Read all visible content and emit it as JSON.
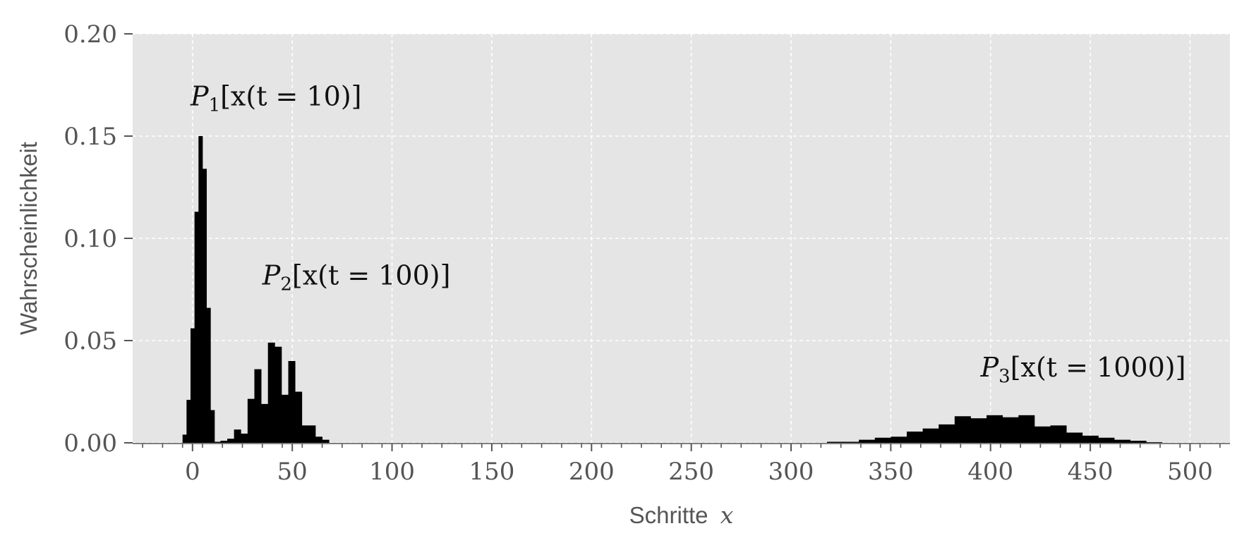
{
  "chart_data": {
    "type": "bar",
    "title": "",
    "xlabel": "Schritte",
    "xlabel_var": "x",
    "ylabel": "Wahrscheinlichkeit",
    "xlim": [
      -30,
      520
    ],
    "ylim": [
      0,
      0.2
    ],
    "xticks": [
      0,
      50,
      100,
      150,
      200,
      250,
      300,
      350,
      400,
      450,
      500
    ],
    "xtick_labels": [
      "0",
      "50",
      "100",
      "150",
      "200",
      "250",
      "300",
      "350",
      "400",
      "450",
      "500"
    ],
    "yticks": [
      0,
      0.05,
      0.1,
      0.15,
      0.2
    ],
    "ytick_labels": [
      "0.00",
      "0.05",
      "0.10",
      "0.15",
      "0.20"
    ],
    "grid": true,
    "grid_style": "dashed",
    "background": "#e5e5e5",
    "bar_color": "#000000",
    "series": [
      {
        "bin_width": 2,
        "bins": [
          {
            "x0": -5,
            "y": 0.004
          },
          {
            "x0": -3,
            "y": 0.021
          },
          {
            "x0": -1,
            "y": 0.056
          },
          {
            "x0": 1,
            "y": 0.113
          },
          {
            "x0": 3,
            "y": 0.15
          },
          {
            "x0": 5,
            "y": 0.134
          },
          {
            "x0": 7,
            "y": 0.066
          },
          {
            "x0": 9,
            "y": 0.016
          }
        ]
      },
      {
        "bin_width": 3.4,
        "bins": [
          {
            "x0": 10.6,
            "y": 0.0005
          },
          {
            "x0": 14.0,
            "y": 0.001
          },
          {
            "x0": 17.4,
            "y": 0.002
          },
          {
            "x0": 20.8,
            "y": 0.0065
          },
          {
            "x0": 24.2,
            "y": 0.0045
          },
          {
            "x0": 27.6,
            "y": 0.0215
          },
          {
            "x0": 31.0,
            "y": 0.036
          },
          {
            "x0": 34.4,
            "y": 0.019
          },
          {
            "x0": 37.8,
            "y": 0.049
          },
          {
            "x0": 41.2,
            "y": 0.047
          },
          {
            "x0": 44.6,
            "y": 0.0235
          },
          {
            "x0": 48.0,
            "y": 0.04
          },
          {
            "x0": 51.4,
            "y": 0.025
          },
          {
            "x0": 54.8,
            "y": 0.0085
          },
          {
            "x0": 58.2,
            "y": 0.0085
          },
          {
            "x0": 61.6,
            "y": 0.003
          },
          {
            "x0": 65.0,
            "y": 0.0015
          }
        ]
      },
      {
        "bin_width": 8,
        "bins": [
          {
            "x0": 318,
            "y": 0.0005
          },
          {
            "x0": 326,
            "y": 0.0005
          },
          {
            "x0": 334,
            "y": 0.0015
          },
          {
            "x0": 342,
            "y": 0.0025
          },
          {
            "x0": 350,
            "y": 0.003
          },
          {
            "x0": 358,
            "y": 0.0055
          },
          {
            "x0": 366,
            "y": 0.007
          },
          {
            "x0": 374,
            "y": 0.009
          },
          {
            "x0": 382,
            "y": 0.013
          },
          {
            "x0": 390,
            "y": 0.012
          },
          {
            "x0": 398,
            "y": 0.0135
          },
          {
            "x0": 406,
            "y": 0.0125
          },
          {
            "x0": 414,
            "y": 0.0135
          },
          {
            "x0": 422,
            "y": 0.008
          },
          {
            "x0": 430,
            "y": 0.0085
          },
          {
            "x0": 438,
            "y": 0.005
          },
          {
            "x0": 446,
            "y": 0.0035
          },
          {
            "x0": 454,
            "y": 0.0025
          },
          {
            "x0": 462,
            "y": 0.0015
          },
          {
            "x0": 470,
            "y": 0.001
          },
          {
            "x0": 478,
            "y": 0.0003
          }
        ]
      }
    ],
    "annotations": [
      {
        "var": "P",
        "sub": "1",
        "rest": "[x(t = 10)]",
        "x": -1,
        "y": 0.165
      },
      {
        "var": "P",
        "sub": "2",
        "rest": "[x(t = 100)]",
        "x": 35,
        "y": 0.0775
      },
      {
        "var": "P",
        "sub": "3",
        "rest": "[x(t = 1000)]",
        "x": 395,
        "y": 0.0325
      }
    ]
  }
}
